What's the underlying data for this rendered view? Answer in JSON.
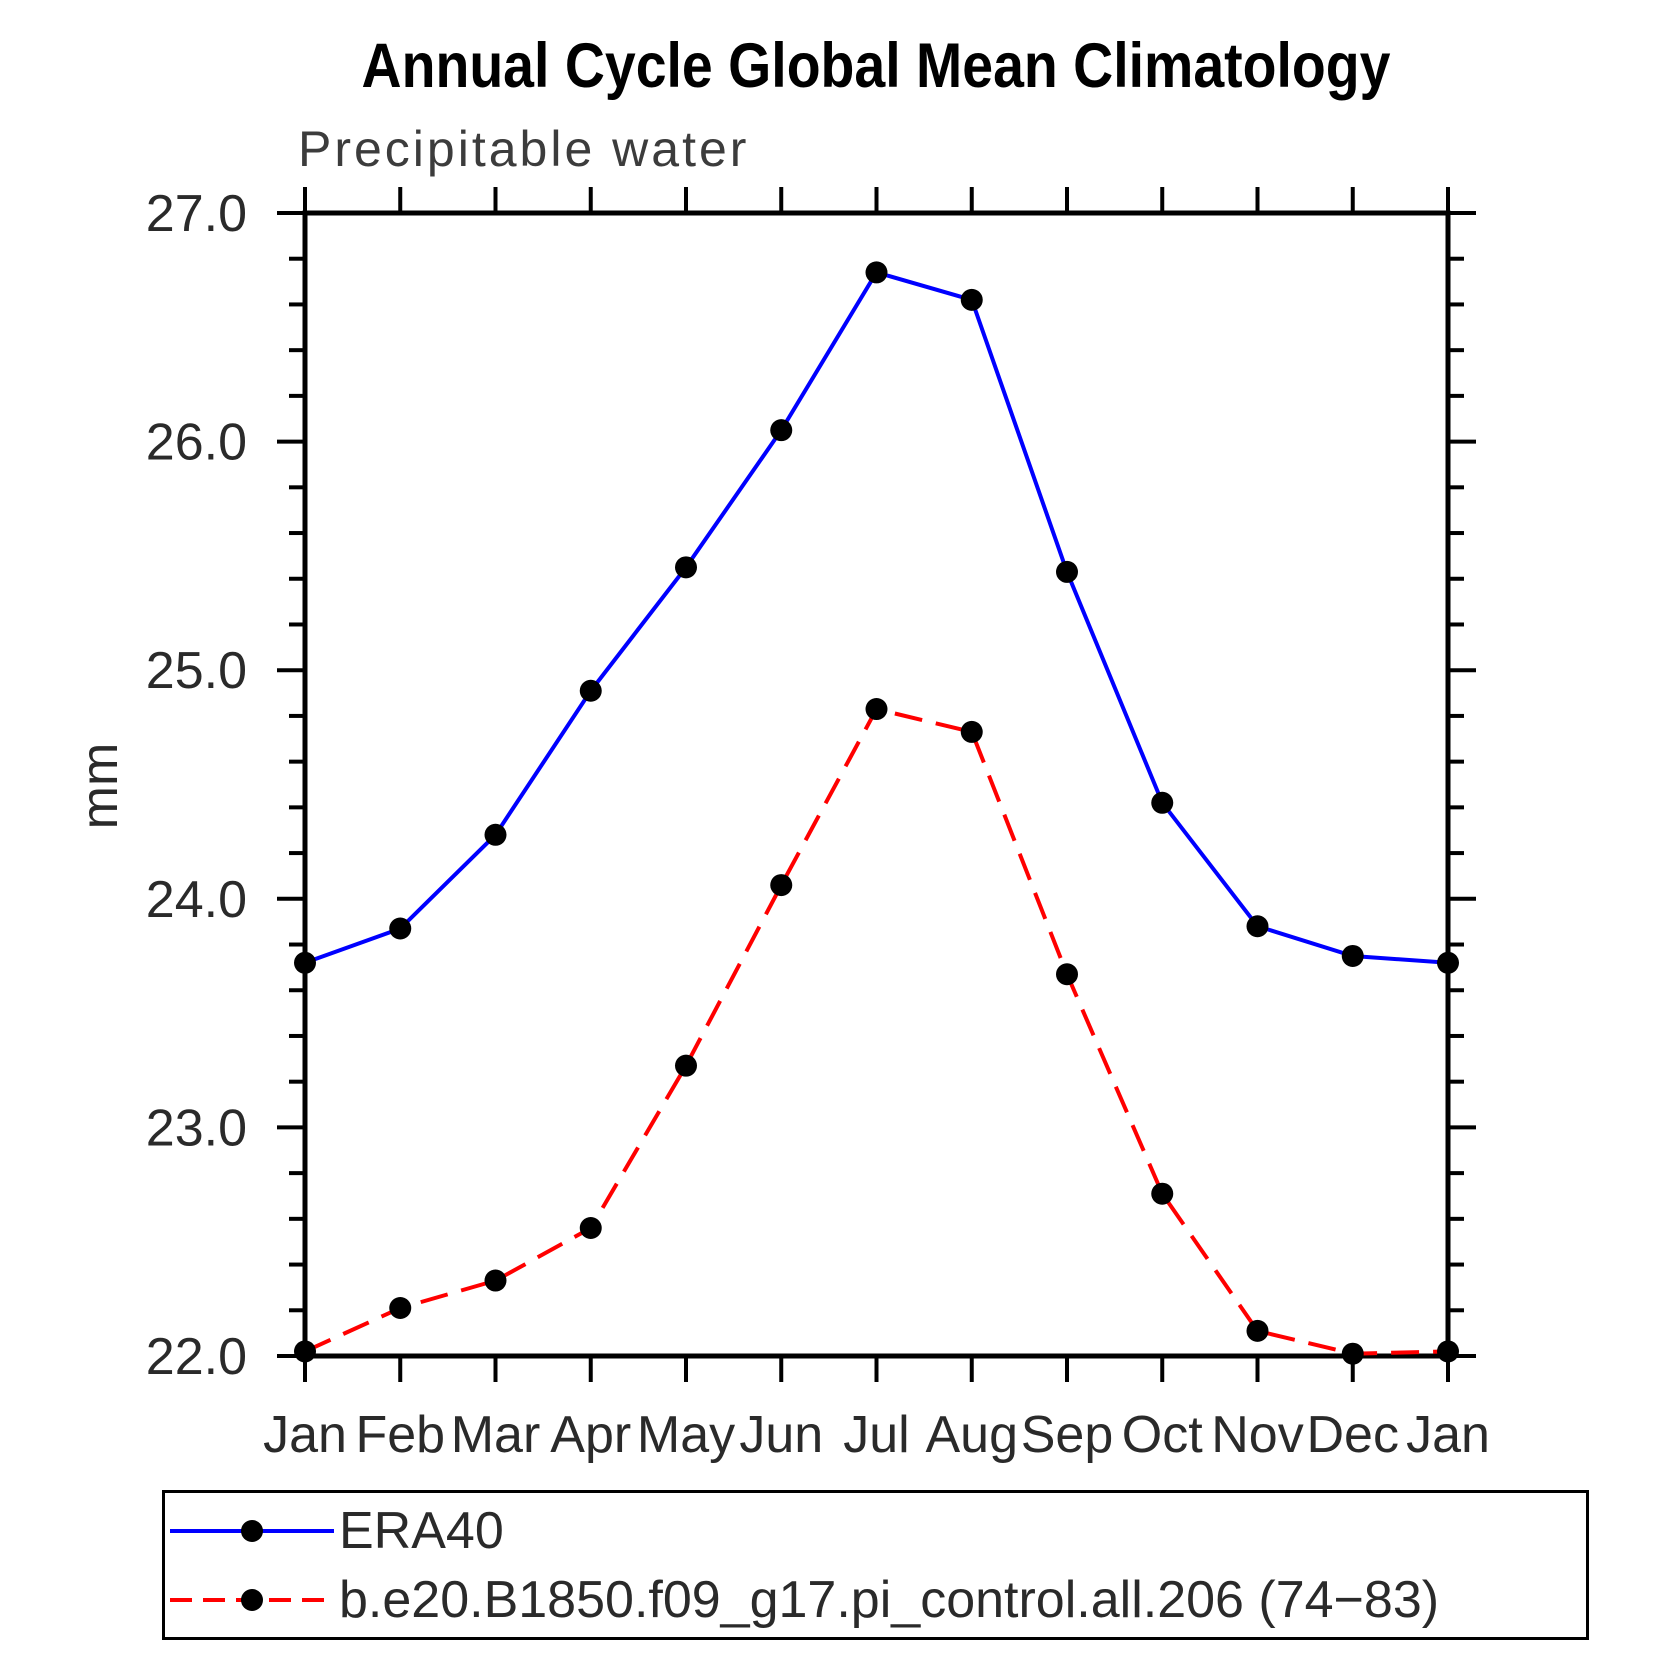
{
  "page": {
    "background": "#ffffff"
  },
  "chart_data": {
    "type": "line",
    "title": "Annual Cycle Global Mean Climatology",
    "subtitle": "Precipitable water",
    "xlabel": "",
    "ylabel": "mm",
    "categories": [
      "Jan",
      "Feb",
      "Mar",
      "Apr",
      "May",
      "Jun",
      "Jul",
      "Aug",
      "Sep",
      "Oct",
      "Nov",
      "Dec",
      "Jan"
    ],
    "series": [
      {
        "name": "ERA40",
        "color": "#0000ff",
        "line_style": "solid",
        "marker": "circle",
        "marker_color": "#000000",
        "values": [
          23.72,
          23.87,
          24.28,
          24.91,
          25.45,
          26.05,
          26.74,
          26.62,
          25.43,
          24.42,
          23.88,
          23.75,
          23.72
        ]
      },
      {
        "name": "b.e20.B1850.f09_g17.pi_control.all.206 (74−83)",
        "color": "#ff0000",
        "line_style": "dashed",
        "marker": "circle",
        "marker_color": "#000000",
        "values": [
          22.02,
          22.21,
          22.33,
          22.56,
          23.27,
          24.06,
          24.83,
          24.73,
          23.67,
          22.71,
          22.11,
          22.01,
          22.02
        ]
      }
    ],
    "ylim": [
      22.0,
      27.0
    ],
    "ytick_major_interval": 1.0,
    "ytick_minor_interval": 0.2,
    "ytick_labels": [
      "22.0",
      "23.0",
      "24.0",
      "25.0",
      "26.0",
      "27.0"
    ],
    "grid": "off",
    "tick_direction": "out",
    "legend_position": "bottom",
    "axis_color": "#000000",
    "text_color": "#2a2a2a"
  }
}
